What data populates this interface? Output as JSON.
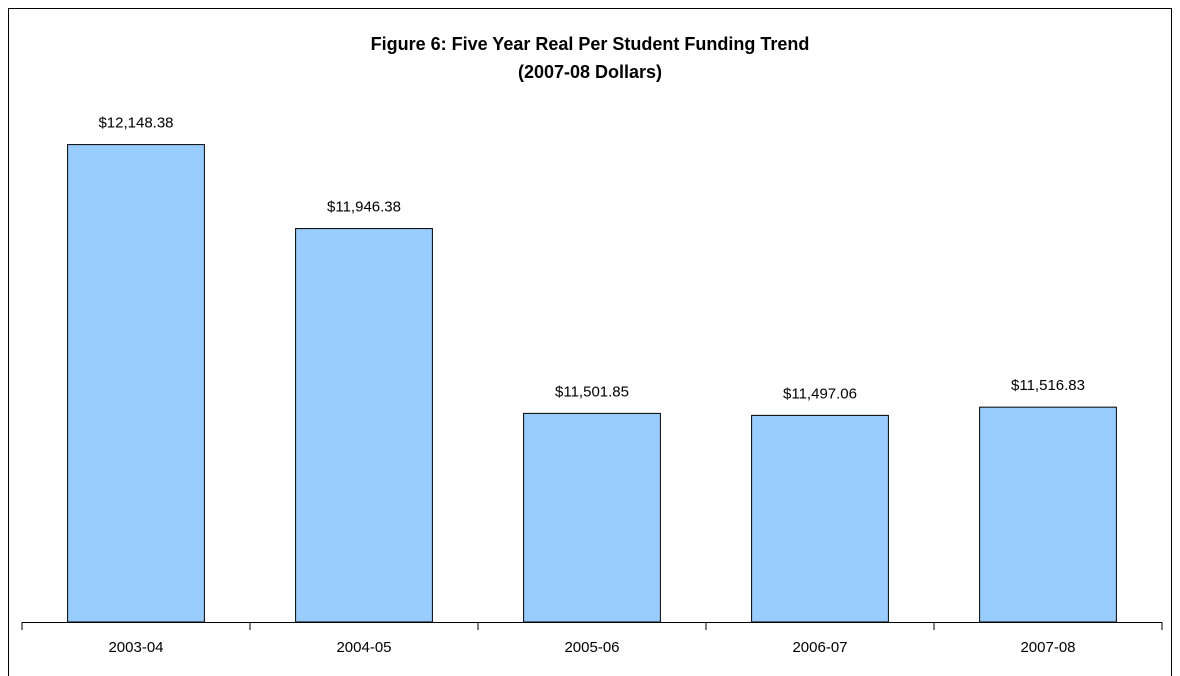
{
  "chart_data": {
    "type": "bar",
    "title": "Figure 6: Five Year Real Per Student Funding Trend",
    "subtitle": "(2007-08 Dollars)",
    "categories": [
      "2003-04",
      "2004-05",
      "2005-06",
      "2006-07",
      "2007-08"
    ],
    "values": [
      12148.38,
      11946.38,
      11501.85,
      11497.06,
      11516.83
    ],
    "value_labels": [
      "$12,148.38",
      "$11,946.38",
      "$11,501.85",
      "$11,497.06",
      "$11,516.83"
    ],
    "color": "#99ccff",
    "ylim": [
      11000,
      12400
    ]
  }
}
